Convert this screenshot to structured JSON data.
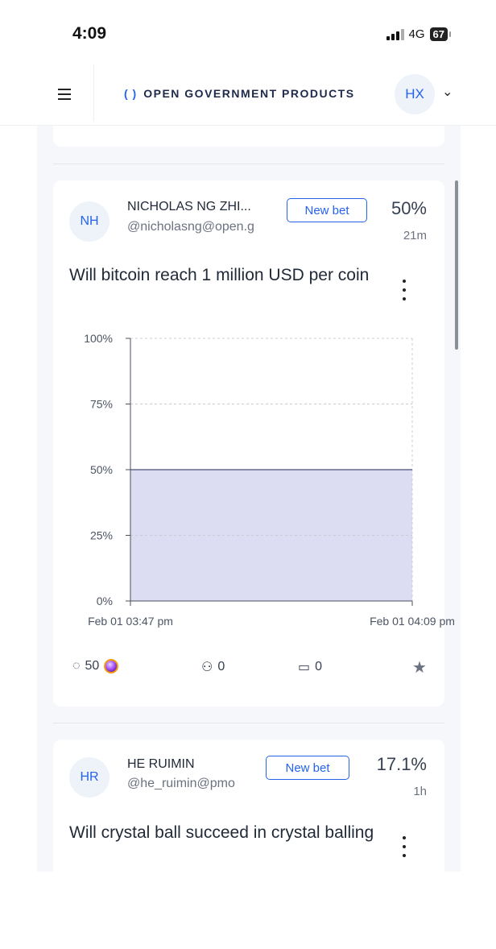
{
  "status_bar": {
    "time": "4:09",
    "network": "4G",
    "battery": "67"
  },
  "header": {
    "brand_icon": "( )",
    "brand": "OPEN GOVERNMENT PRODUCTS",
    "avatar": "HX"
  },
  "cards": [
    {
      "avatar": "NH",
      "name": "NICHOLAS NG ZHI...",
      "handle": "@nicholasng@open.g",
      "new_bet": "New bet",
      "probability": "50%",
      "age": "21m",
      "question": "Will bitcoin reach 1 million USD per coin",
      "stats": {
        "volume": "50",
        "traders": "0",
        "comments": "0"
      },
      "chart_data": {
        "type": "area",
        "x": [
          "Feb 01 03:47 pm",
          "Feb 01 04:09 pm"
        ],
        "y": [
          50,
          50
        ],
        "ylim": [
          0,
          100
        ],
        "y_ticks": [
          "100%",
          "75%",
          "50%",
          "25%",
          "0%"
        ],
        "x_ticks": [
          "Feb 01 03:47 pm",
          "Feb 01 04:09 pm"
        ],
        "grid": true,
        "fill_color": "#dcdcf2",
        "line_color": "#4b4f74"
      }
    },
    {
      "avatar": "HR",
      "name": "HE RUIMIN",
      "handle": "@he_ruimin@pmo",
      "new_bet": "New bet",
      "probability": "17.1%",
      "age": "1h",
      "question": "Will crystal ball succeed in crystal balling"
    }
  ],
  "colors": {
    "accent": "#2563eb",
    "feed_bg": "#f6f7fb"
  }
}
